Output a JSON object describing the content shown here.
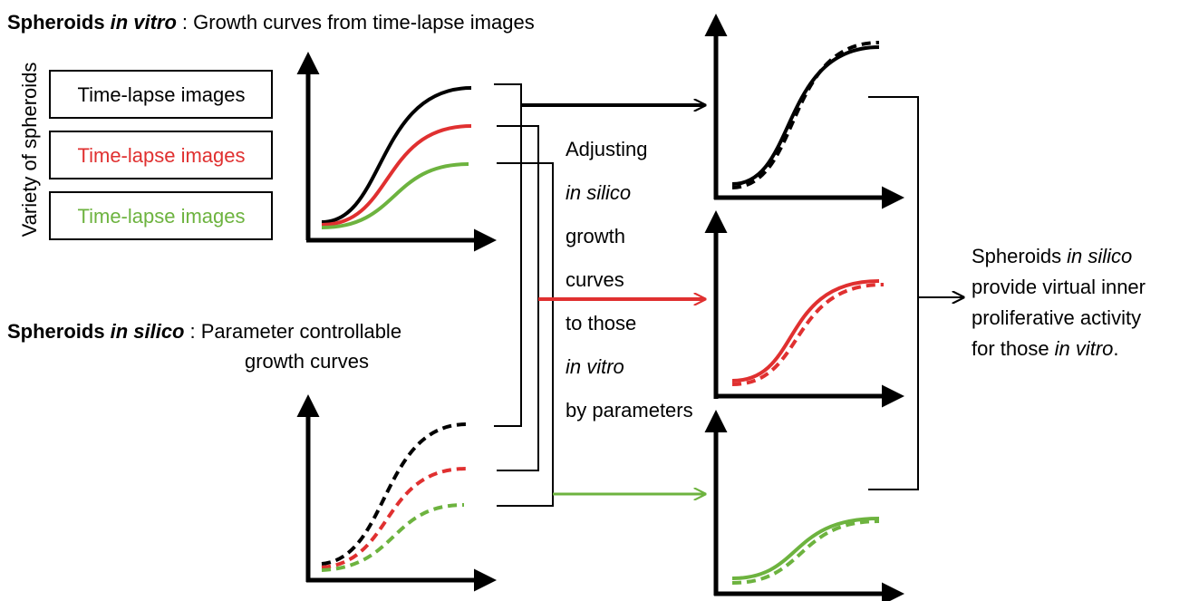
{
  "top_heading": {
    "bold": "Spheroids",
    "italic": "in vitro",
    "rest": ": Growth curves from time-lapse images"
  },
  "side_label": "Variety of spheroids",
  "boxes": [
    "Time-lapse images",
    "Time-lapse images",
    "Time-lapse images"
  ],
  "bottom_heading": {
    "bold": "Spheroids",
    "italic": "in silico",
    "rest": ": Parameter controllable",
    "rest_line2": "growth curves"
  },
  "middle_text": [
    "Adjusting",
    "in silico",
    "growth",
    "curves",
    "to those",
    "in vitro",
    "by parameters"
  ],
  "conclusion": {
    "line1": "Spheroids",
    "line1_italic": "in silico",
    "line2": "provide virtual inner",
    "line3": "proliferative activity",
    "line4": "for those",
    "line4_italic": "in vitro",
    "line4_end": "."
  }
}
